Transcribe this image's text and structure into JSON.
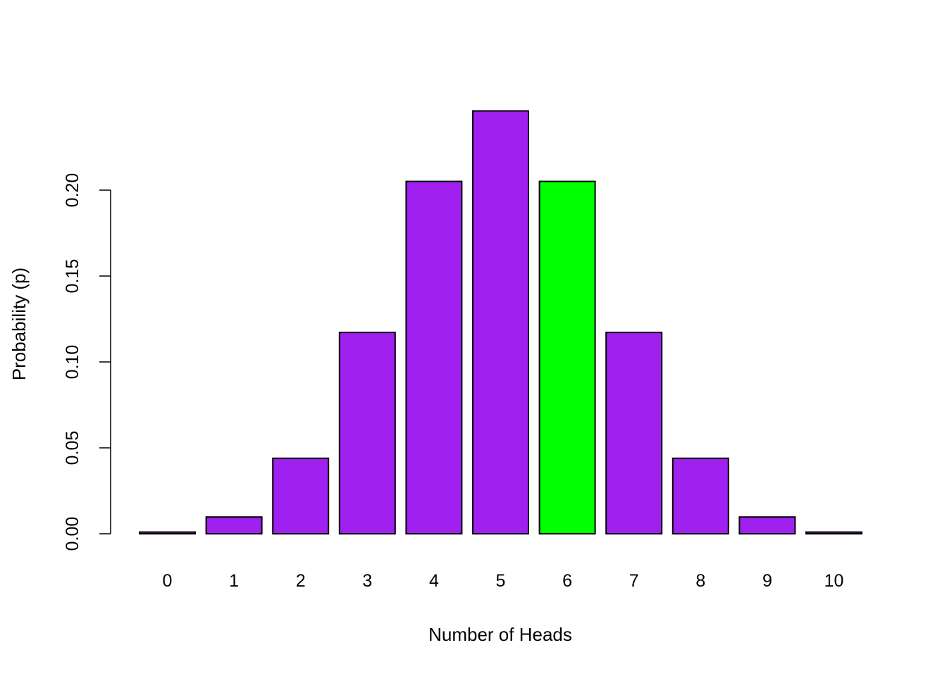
{
  "chart_data": {
    "type": "bar",
    "title": "",
    "xlabel": "Number of Heads",
    "ylabel": "Probability (p)",
    "categories": [
      "0",
      "1",
      "2",
      "3",
      "4",
      "5",
      "6",
      "7",
      "8",
      "9",
      "10"
    ],
    "values": [
      0.000977,
      0.009766,
      0.043945,
      0.117188,
      0.205078,
      0.246094,
      0.205078,
      0.117188,
      0.043945,
      0.009766,
      0.000977
    ],
    "highlight_index": 6,
    "colors": {
      "default": "#a020f0",
      "highlight": "#00ff00",
      "border": "#000000"
    },
    "ylim": [
      0,
      0.25
    ],
    "yticks": [
      "0.00",
      "0.05",
      "0.10",
      "0.15",
      "0.20"
    ],
    "grid": false,
    "legend": "none"
  }
}
